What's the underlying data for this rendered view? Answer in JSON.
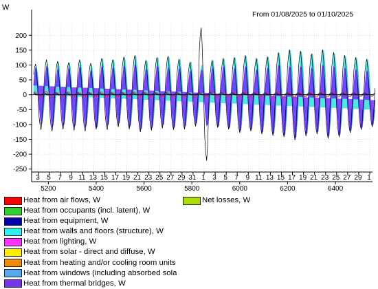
{
  "header": {
    "unit": "W",
    "date_range": "From 01/08/2025 to 01/10/2025"
  },
  "chart_data": {
    "type": "line",
    "title": "From 01/08/2025 to 01/10/2025",
    "ylabel": "W",
    "xlabel": "",
    "ylim": [
      -260,
      240
    ],
    "xlim": [
      5130,
      6555
    ],
    "y_ticks": [
      200,
      150,
      100,
      50,
      0,
      -50,
      -100,
      -150,
      -200,
      -250
    ],
    "x_ticks": [
      5200,
      5400,
      5600,
      5800,
      6000,
      6200,
      6400
    ],
    "day_ticks": [
      "3",
      "5",
      "7",
      "9",
      "11",
      "13",
      "15",
      "17",
      "19",
      "21",
      "23",
      "25",
      "27",
      "29",
      "31",
      "1",
      "3",
      "5",
      "7",
      "9",
      "11",
      "13",
      "15",
      "17",
      "19",
      "21",
      "23",
      "25",
      "27",
      "29",
      "1"
    ],
    "grid": true,
    "series": [
      {
        "name": "Heat from walls and floors (structure), W",
        "color": "#33e0e0",
        "daily_peak_gains": [
          95,
          105,
          110,
          108,
          112,
          100,
          120,
          118,
          125,
          130,
          115,
          125,
          128,
          120,
          110,
          100,
          115,
          120,
          125,
          130,
          120,
          128,
          140,
          150,
          145,
          138,
          150,
          140,
          130,
          125,
          120
        ],
        "daily_peak_losses": [
          -90,
          -100,
          -95,
          -105,
          -100,
          -110,
          -100,
          -95,
          -105,
          -115,
          -110,
          -100,
          -110,
          -105,
          -95,
          -100,
          -105,
          -110,
          -120,
          -115,
          -125,
          -130,
          -135,
          -140,
          -130,
          -125,
          -135,
          -130,
          -120,
          -110,
          -100
        ]
      },
      {
        "name": "Heat from thermal bridges, W",
        "color": "#7030ff",
        "daily_peak_gains": [
          90,
          95,
          85,
          88,
          92,
          80,
          95,
          90,
          95,
          100,
          85,
          95,
          90,
          88,
          80,
          85,
          90,
          95,
          90,
          95,
          85,
          90,
          100,
          95,
          95,
          90,
          100,
          95,
          90,
          85,
          80
        ],
        "daily_peak_losses": [
          -100,
          -110,
          -105,
          -108,
          -110,
          -112,
          -105,
          -100,
          -110,
          -120,
          -115,
          -105,
          -115,
          -110,
          -100,
          -105,
          -110,
          -115,
          -125,
          -120,
          -130,
          -135,
          -140,
          -150,
          -135,
          -130,
          -145,
          -140,
          -125,
          -115,
          -105
        ]
      },
      {
        "name": "Net losses, W",
        "color": "#000000",
        "daily_peak_gains": [
          105,
          120,
          115,
          110,
          120,
          108,
          125,
          120,
          130,
          135,
          118,
          128,
          132,
          122,
          112,
          230,
          118,
          125,
          128,
          135,
          125,
          130,
          145,
          155,
          150,
          140,
          155,
          145,
          135,
          128,
          122
        ],
        "daily_peak_losses": [
          -120,
          -125,
          -118,
          -122,
          -125,
          -118,
          -120,
          -110,
          -118,
          -128,
          -122,
          -115,
          -120,
          -118,
          -108,
          -225,
          -112,
          -118,
          -130,
          -125,
          -135,
          -140,
          -145,
          -155,
          -142,
          -135,
          -150,
          -145,
          -130,
          -120,
          -110
        ]
      },
      {
        "name": "Heat from air flows, W",
        "color": "#ff2020",
        "daily_peak_gains": [
          10,
          12,
          8,
          10,
          9,
          8,
          10,
          9,
          8,
          10,
          9,
          8,
          9,
          8,
          7,
          8,
          9,
          8,
          9,
          10,
          8,
          9,
          10,
          9,
          8,
          9,
          10,
          9,
          8,
          7,
          6
        ],
        "daily_peak_losses": [
          -8,
          -9,
          -7,
          -8,
          -8,
          -7,
          -8,
          -8,
          -7,
          -8,
          -8,
          -7,
          -8,
          -7,
          -6,
          -7,
          -8,
          -7,
          -8,
          -8,
          -7,
          -8,
          -8,
          -8,
          -7,
          -8,
          -8,
          -8,
          -7,
          -6,
          -6
        ]
      },
      {
        "name": "Heat from occupants (incl. latent), W",
        "color": "#22cc22",
        "daily_peak_gains": [
          5,
          5,
          5,
          5,
          5,
          5,
          5,
          5,
          5,
          5,
          5,
          5,
          5,
          5,
          5,
          5,
          5,
          5,
          5,
          5,
          5,
          5,
          5,
          5,
          5,
          5,
          5,
          5,
          5,
          5,
          5
        ],
        "daily_peak_losses": [
          0,
          0,
          0,
          0,
          0,
          0,
          0,
          0,
          0,
          0,
          0,
          0,
          0,
          0,
          0,
          0,
          0,
          0,
          0,
          0,
          0,
          0,
          0,
          0,
          0,
          0,
          0,
          0,
          0,
          0,
          0
        ]
      },
      {
        "name": "Heat from equipment, W",
        "color": "#0000b0",
        "daily_peak_gains": [
          6,
          6,
          6,
          6,
          6,
          6,
          6,
          6,
          6,
          6,
          6,
          6,
          6,
          6,
          6,
          6,
          6,
          6,
          6,
          6,
          6,
          6,
          6,
          6,
          6,
          6,
          6,
          6,
          6,
          6,
          6
        ],
        "daily_peak_losses": [
          0,
          0,
          0,
          0,
          0,
          0,
          0,
          0,
          0,
          0,
          0,
          0,
          0,
          0,
          0,
          0,
          0,
          0,
          0,
          0,
          0,
          0,
          0,
          0,
          0,
          0,
          0,
          0,
          0,
          0,
          0
        ]
      }
    ]
  },
  "legend": {
    "left": [
      {
        "label": "Heat from air flows, W",
        "color": "#ff0000"
      },
      {
        "label": "Heat from occupants (incl. latent), W",
        "color": "#33cc33"
      },
      {
        "label": "Heat from equipment, W",
        "color": "#0000b0"
      },
      {
        "label": "Heat from walls and floors (structure), W",
        "color": "#33eeee"
      },
      {
        "label": "Heat from lighting, W",
        "color": "#ff33ff"
      },
      {
        "label": "Heat from solar - direct and diffuse, W",
        "color": "#ffee00"
      },
      {
        "label": "Heat from heating and/or cooling room units",
        "color": "#f08a00"
      },
      {
        "label": "Heat from windows (including absorbed sola",
        "color": "#55aaee"
      },
      {
        "label": "Heat from thermal bridges, W",
        "color": "#7733ee"
      }
    ],
    "right": [
      {
        "label": "Net losses, W",
        "color": "#aadd00"
      }
    ]
  }
}
